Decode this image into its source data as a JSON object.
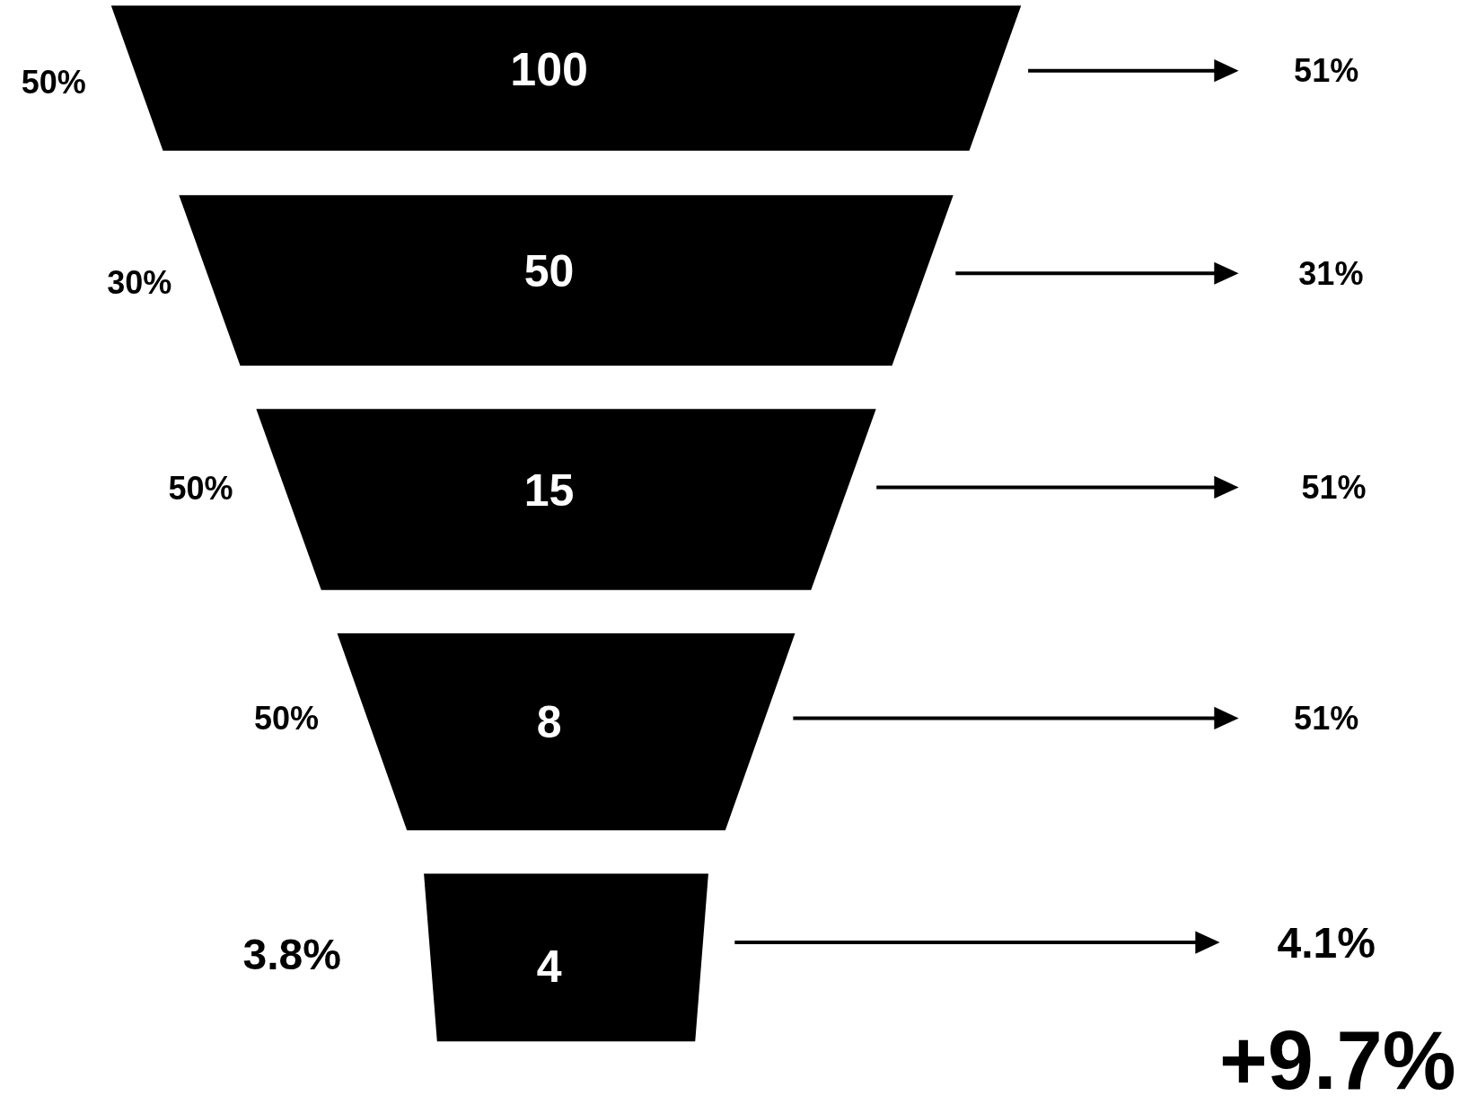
{
  "chart_data": {
    "type": "other",
    "categories": [
      null,
      null,
      null,
      null,
      null
    ],
    "values": [
      100,
      50,
      15,
      8,
      4
    ],
    "color": "#000000",
    "data_labels": true,
    "annotations": [
      "50%",
      "30%",
      "50%",
      "50%",
      "3.8%",
      "51%",
      "31%",
      "51%",
      "51%",
      "4.1%",
      "+9.7%"
    ]
  }
}
